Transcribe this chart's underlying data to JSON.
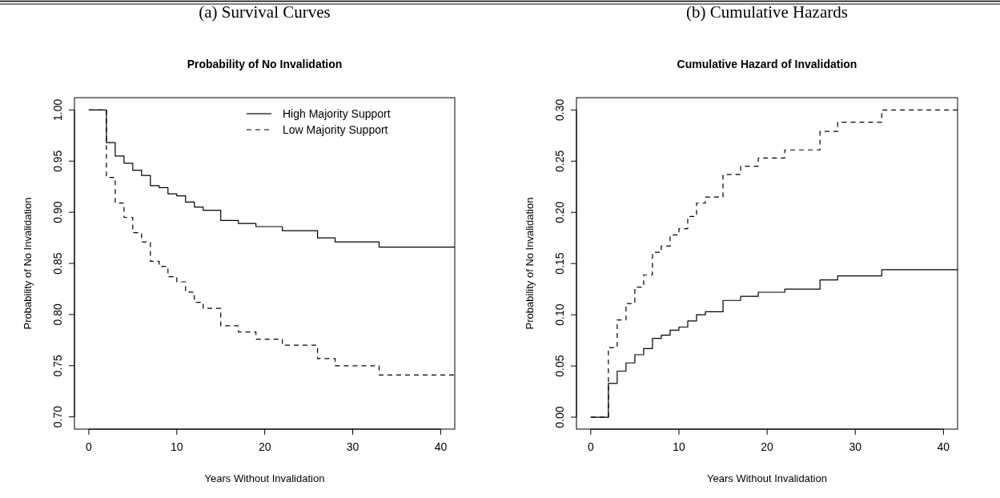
{
  "chart_data": [
    {
      "type": "step",
      "title": "(a) Survival Curves",
      "subtitle": "Probability of No Invalidation",
      "xlabel": "Years Without Invalidation",
      "ylabel": "Probability of No Invalidation",
      "xlim": [
        -1.63,
        41.6
      ],
      "ylim": [
        0.688,
        1.012
      ],
      "xticks": [
        0,
        10,
        20,
        30,
        40
      ],
      "yticks": [
        {
          "value": 0.7,
          "label": "0.70"
        },
        {
          "value": 0.75,
          "label": "0.75"
        },
        {
          "value": 0.8,
          "label": "0.80"
        },
        {
          "value": 0.85,
          "label": "0.85"
        },
        {
          "value": 0.9,
          "label": "0.90"
        },
        {
          "value": 0.95,
          "label": "0.95"
        },
        {
          "value": 1,
          "label": "1.00"
        }
      ],
      "legend": "top right",
      "grid": false,
      "series": [
        {
          "name": "High Majority Support",
          "color": "#000000",
          "line_style": "solid",
          "x": [
            0,
            2,
            3,
            4,
            5,
            6,
            7,
            8,
            9,
            10,
            11,
            12,
            13,
            15,
            17,
            19,
            22,
            26,
            28,
            33,
            41.6
          ],
          "values": [
            1,
            0.968,
            0.955,
            0.948,
            0.941,
            0.936,
            0.926,
            0.924,
            0.918,
            0.916,
            0.91,
            0.905,
            0.902,
            0.892,
            0.889,
            0.886,
            0.882,
            0.875,
            0.871,
            0.866,
            0.866
          ]
        },
        {
          "name": "Low Majority Support",
          "color": "#000000",
          "line_style": "dashed",
          "x": [
            0,
            2,
            3,
            4,
            5,
            6,
            7,
            8,
            9,
            10,
            11,
            12,
            13,
            15,
            17,
            19,
            22,
            26,
            28,
            33,
            41.6
          ],
          "values": [
            1,
            0.934,
            0.909,
            0.895,
            0.88,
            0.871,
            0.852,
            0.847,
            0.837,
            0.832,
            0.822,
            0.812,
            0.806,
            0.789,
            0.783,
            0.776,
            0.77,
            0.757,
            0.75,
            0.741,
            0.741
          ]
        }
      ]
    },
    {
      "type": "step",
      "title": "(b) Cumulative Hazards",
      "subtitle": "Cumulative Hazard of Invalidation",
      "xlabel": "Years Without Invalidation",
      "ylabel": "Probability of No Invalidation",
      "xlim": [
        -1.62,
        41.6
      ],
      "ylim": [
        -0.0117,
        0.312
      ],
      "xticks": [
        0,
        10,
        20,
        30,
        40
      ],
      "yticks": [
        {
          "value": 0,
          "label": "0.00"
        },
        {
          "value": 0.05,
          "label": "0.05"
        },
        {
          "value": 0.1,
          "label": "0.10"
        },
        {
          "value": 0.15,
          "label": "0.15"
        },
        {
          "value": 0.2,
          "label": "0.20"
        },
        {
          "value": 0.25,
          "label": "0.25"
        },
        {
          "value": 0.3,
          "label": "0.30"
        }
      ],
      "grid": false,
      "series": [
        {
          "color": "#000000",
          "line_style": "solid",
          "x": [
            0,
            2,
            3,
            4,
            5,
            6,
            7,
            8,
            9,
            10,
            11,
            12,
            13,
            15,
            17,
            19,
            22,
            26,
            28,
            33,
            41.6
          ],
          "values": [
            0,
            0.033,
            0.045,
            0.053,
            0.061,
            0.067,
            0.077,
            0.08,
            0.085,
            0.088,
            0.094,
            0.1,
            0.103,
            0.114,
            0.118,
            0.122,
            0.125,
            0.134,
            0.138,
            0.144,
            0.144
          ]
        },
        {
          "color": "#000000",
          "line_style": "dashed",
          "x": [
            0,
            2,
            3,
            4,
            5,
            6,
            7,
            8,
            9,
            10,
            11,
            12,
            13,
            15,
            17,
            19,
            22,
            26,
            28,
            33,
            41.6
          ],
          "values": [
            0,
            0.068,
            0.095,
            0.111,
            0.127,
            0.139,
            0.161,
            0.167,
            0.178,
            0.184,
            0.196,
            0.209,
            0.215,
            0.237,
            0.245,
            0.253,
            0.261,
            0.279,
            0.288,
            0.3,
            0.3
          ]
        }
      ]
    }
  ]
}
